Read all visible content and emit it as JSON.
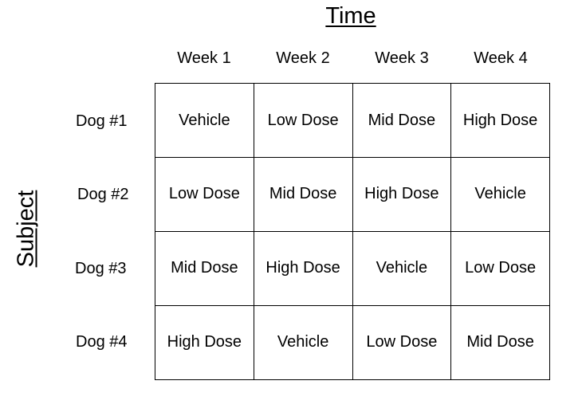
{
  "titles": {
    "x_axis": "Time",
    "y_axis": "Subject"
  },
  "columns": [
    "Week 1",
    "Week 2",
    "Week 3",
    "Week 4"
  ],
  "rows": [
    {
      "label": "Dog #1",
      "cells": [
        "Vehicle",
        "Low Dose",
        "Mid Dose",
        "High Dose"
      ]
    },
    {
      "label": "Dog #2",
      "cells": [
        "Low Dose",
        "Mid Dose",
        "High Dose",
        "Vehicle"
      ]
    },
    {
      "label": "Dog #3",
      "cells": [
        "Mid Dose",
        "High Dose",
        "Vehicle",
        "Low Dose"
      ]
    },
    {
      "label": "Dog #4",
      "cells": [
        "High Dose",
        "Vehicle",
        "Low Dose",
        "Mid Dose"
      ]
    }
  ]
}
